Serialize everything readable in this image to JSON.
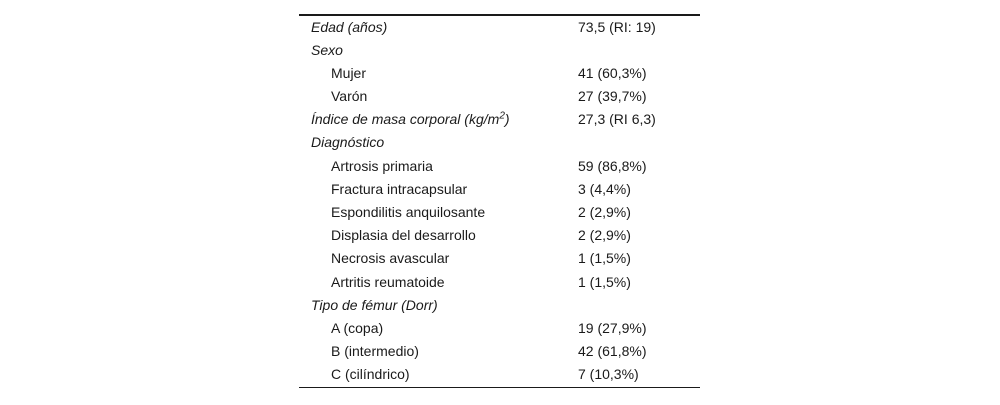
{
  "table": {
    "text_color": "#1a1a1a",
    "rule_color": "#1a1a1a",
    "rows": [
      {
        "label": "Edad (años)",
        "value": "73,5 (RI: 19)",
        "type": "category"
      },
      {
        "label": "Sexo",
        "value": "",
        "type": "category"
      },
      {
        "label": "Mujer",
        "value": "41 (60,3%)",
        "type": "item"
      },
      {
        "label": "Varón",
        "value": "27 (39,7%)",
        "type": "item"
      },
      {
        "label": "Índice de masa corporal (kg/m",
        "label_sup": "2",
        "label_end": ")",
        "value": "27,3 (RI 6,3)",
        "type": "category"
      },
      {
        "label": "Diagnóstico",
        "value": "",
        "type": "category"
      },
      {
        "label": "Artrosis primaria",
        "value": "59 (86,8%)",
        "type": "item"
      },
      {
        "label": "Fractura intracapsular",
        "value": "3 (4,4%)",
        "type": "item"
      },
      {
        "label": "Espondilitis anquilosante",
        "value": "2 (2,9%)",
        "type": "item"
      },
      {
        "label": "Displasia del desarrollo",
        "value": "2 (2,9%)",
        "type": "item"
      },
      {
        "label": "Necrosis avascular",
        "value": "1 (1,5%)",
        "type": "item"
      },
      {
        "label": "Artritis reumatoide",
        "value": "1 (1,5%)",
        "type": "item"
      },
      {
        "label": "Tipo de fémur (Dorr)",
        "value": "",
        "type": "category"
      },
      {
        "label": "A (copa)",
        "value": "19 (27,9%)",
        "type": "item"
      },
      {
        "label": "B (intermedio)",
        "value": "42 (61,8%)",
        "type": "item"
      },
      {
        "label": "C (cilíndrico)",
        "value": "7 (10,3%)",
        "type": "item"
      }
    ]
  }
}
